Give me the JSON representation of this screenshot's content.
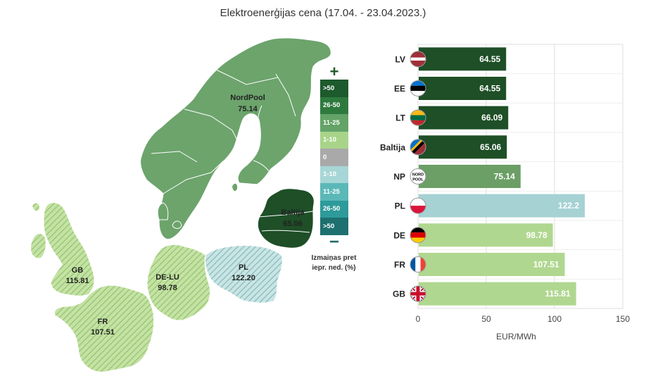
{
  "title": "Elektroenerģijas cena (17.04. - 23.04.2023.)",
  "colors": {
    "dark_green": "#1e4f27",
    "medium_green": "#6b9f65",
    "light_green": "#b0d78f",
    "light_teal": "#a6d2d4",
    "map_nordpool": "#6ca46c",
    "map_light": "#b9dc95"
  },
  "map": {
    "regions": [
      {
        "code": "NordPool",
        "value": "75.14"
      },
      {
        "code": "Baltija",
        "value": "65.06"
      },
      {
        "code": "PL",
        "value": "122.20"
      },
      {
        "code": "DE-LU",
        "value": "98.78"
      },
      {
        "code": "GB",
        "value": "115.81"
      },
      {
        "code": "FR",
        "value": "107.51"
      }
    ]
  },
  "legend": {
    "plus": "+",
    "minus": "−",
    "items": [
      {
        "label": ">50",
        "color": "#1d5a2c"
      },
      {
        "label": "26-50",
        "color": "#2e7a3e"
      },
      {
        "label": "11-25",
        "color": "#63a367"
      },
      {
        "label": "1-10",
        "color": "#a8d48a"
      },
      {
        "label": "0",
        "color": "#a9a9a9"
      },
      {
        "label": "1-10",
        "color": "#a7d6d6"
      },
      {
        "label": "11-25",
        "color": "#5cb8b8"
      },
      {
        "label": "26-50",
        "color": "#2e9a9a"
      },
      {
        "label": ">50",
        "color": "#1e6f6f"
      }
    ],
    "note_line1": "Izmaiņas pret",
    "note_line2": "iepr. ned. (%)"
  },
  "chart_data": {
    "type": "bar",
    "orientation": "horizontal",
    "categories": [
      "LV",
      "EE",
      "LT",
      "Baltija",
      "NP",
      "PL",
      "DE",
      "FR",
      "GB"
    ],
    "values": [
      64.55,
      64.55,
      66.09,
      65.06,
      75.14,
      122.2,
      98.78,
      107.51,
      115.81
    ],
    "value_labels": [
      "64.55",
      "64.55",
      "66.09",
      "65.06",
      "75.14",
      "122.2",
      "98.78",
      "107.51",
      "115.81"
    ],
    "bar_colors": [
      "#1e4f27",
      "#1e4f27",
      "#1e4f27",
      "#1e4f27",
      "#6b9f65",
      "#a6d2d4",
      "#b0d78f",
      "#b0d78f",
      "#b0d78f"
    ],
    "flags": [
      "latvia-flag-icon",
      "estonia-flag-icon",
      "lithuania-flag-icon",
      "baltic-flag-icon",
      "nordpool-logo-icon",
      "poland-flag-icon",
      "germany-flag-icon",
      "france-flag-icon",
      "uk-flag-icon"
    ],
    "np_logo_text": "NORD POOL",
    "xlim": [
      0,
      150
    ],
    "xticks": [
      "0",
      "50",
      "100",
      "150"
    ],
    "xlabel": "EUR/MWh",
    "grid": true
  }
}
